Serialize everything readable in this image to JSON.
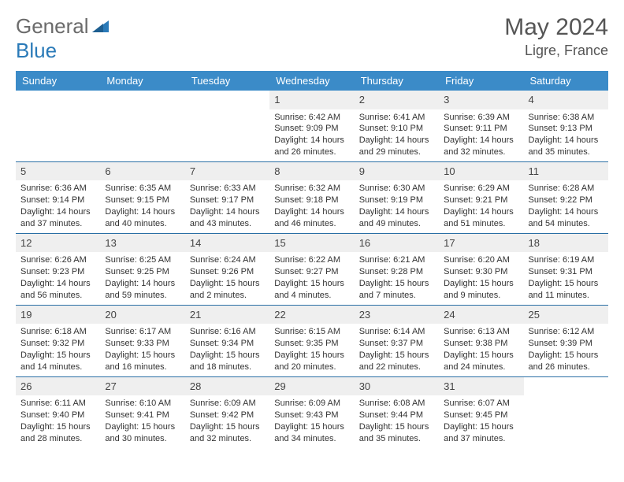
{
  "logo": {
    "part1": "General",
    "part2": "Blue"
  },
  "title": "May 2024",
  "location": "Ligre, France",
  "colors": {
    "header_bg": "#3b8bc8",
    "header_fg": "#ffffff",
    "daynum_bg": "#efefef",
    "row_border": "#2a6fa5",
    "logo_gray": "#6b6b6b",
    "logo_blue": "#2a7ab8"
  },
  "weekdays": [
    "Sunday",
    "Monday",
    "Tuesday",
    "Wednesday",
    "Thursday",
    "Friday",
    "Saturday"
  ],
  "weeks": [
    [
      {
        "n": "",
        "lines": [
          "",
          "",
          "",
          ""
        ]
      },
      {
        "n": "",
        "lines": [
          "",
          "",
          "",
          ""
        ]
      },
      {
        "n": "",
        "lines": [
          "",
          "",
          "",
          ""
        ]
      },
      {
        "n": "1",
        "lines": [
          "Sunrise: 6:42 AM",
          "Sunset: 9:09 PM",
          "Daylight: 14 hours",
          "and 26 minutes."
        ]
      },
      {
        "n": "2",
        "lines": [
          "Sunrise: 6:41 AM",
          "Sunset: 9:10 PM",
          "Daylight: 14 hours",
          "and 29 minutes."
        ]
      },
      {
        "n": "3",
        "lines": [
          "Sunrise: 6:39 AM",
          "Sunset: 9:11 PM",
          "Daylight: 14 hours",
          "and 32 minutes."
        ]
      },
      {
        "n": "4",
        "lines": [
          "Sunrise: 6:38 AM",
          "Sunset: 9:13 PM",
          "Daylight: 14 hours",
          "and 35 minutes."
        ]
      }
    ],
    [
      {
        "n": "5",
        "lines": [
          "Sunrise: 6:36 AM",
          "Sunset: 9:14 PM",
          "Daylight: 14 hours",
          "and 37 minutes."
        ]
      },
      {
        "n": "6",
        "lines": [
          "Sunrise: 6:35 AM",
          "Sunset: 9:15 PM",
          "Daylight: 14 hours",
          "and 40 minutes."
        ]
      },
      {
        "n": "7",
        "lines": [
          "Sunrise: 6:33 AM",
          "Sunset: 9:17 PM",
          "Daylight: 14 hours",
          "and 43 minutes."
        ]
      },
      {
        "n": "8",
        "lines": [
          "Sunrise: 6:32 AM",
          "Sunset: 9:18 PM",
          "Daylight: 14 hours",
          "and 46 minutes."
        ]
      },
      {
        "n": "9",
        "lines": [
          "Sunrise: 6:30 AM",
          "Sunset: 9:19 PM",
          "Daylight: 14 hours",
          "and 49 minutes."
        ]
      },
      {
        "n": "10",
        "lines": [
          "Sunrise: 6:29 AM",
          "Sunset: 9:21 PM",
          "Daylight: 14 hours",
          "and 51 minutes."
        ]
      },
      {
        "n": "11",
        "lines": [
          "Sunrise: 6:28 AM",
          "Sunset: 9:22 PM",
          "Daylight: 14 hours",
          "and 54 minutes."
        ]
      }
    ],
    [
      {
        "n": "12",
        "lines": [
          "Sunrise: 6:26 AM",
          "Sunset: 9:23 PM",
          "Daylight: 14 hours",
          "and 56 minutes."
        ]
      },
      {
        "n": "13",
        "lines": [
          "Sunrise: 6:25 AM",
          "Sunset: 9:25 PM",
          "Daylight: 14 hours",
          "and 59 minutes."
        ]
      },
      {
        "n": "14",
        "lines": [
          "Sunrise: 6:24 AM",
          "Sunset: 9:26 PM",
          "Daylight: 15 hours",
          "and 2 minutes."
        ]
      },
      {
        "n": "15",
        "lines": [
          "Sunrise: 6:22 AM",
          "Sunset: 9:27 PM",
          "Daylight: 15 hours",
          "and 4 minutes."
        ]
      },
      {
        "n": "16",
        "lines": [
          "Sunrise: 6:21 AM",
          "Sunset: 9:28 PM",
          "Daylight: 15 hours",
          "and 7 minutes."
        ]
      },
      {
        "n": "17",
        "lines": [
          "Sunrise: 6:20 AM",
          "Sunset: 9:30 PM",
          "Daylight: 15 hours",
          "and 9 minutes."
        ]
      },
      {
        "n": "18",
        "lines": [
          "Sunrise: 6:19 AM",
          "Sunset: 9:31 PM",
          "Daylight: 15 hours",
          "and 11 minutes."
        ]
      }
    ],
    [
      {
        "n": "19",
        "lines": [
          "Sunrise: 6:18 AM",
          "Sunset: 9:32 PM",
          "Daylight: 15 hours",
          "and 14 minutes."
        ]
      },
      {
        "n": "20",
        "lines": [
          "Sunrise: 6:17 AM",
          "Sunset: 9:33 PM",
          "Daylight: 15 hours",
          "and 16 minutes."
        ]
      },
      {
        "n": "21",
        "lines": [
          "Sunrise: 6:16 AM",
          "Sunset: 9:34 PM",
          "Daylight: 15 hours",
          "and 18 minutes."
        ]
      },
      {
        "n": "22",
        "lines": [
          "Sunrise: 6:15 AM",
          "Sunset: 9:35 PM",
          "Daylight: 15 hours",
          "and 20 minutes."
        ]
      },
      {
        "n": "23",
        "lines": [
          "Sunrise: 6:14 AM",
          "Sunset: 9:37 PM",
          "Daylight: 15 hours",
          "and 22 minutes."
        ]
      },
      {
        "n": "24",
        "lines": [
          "Sunrise: 6:13 AM",
          "Sunset: 9:38 PM",
          "Daylight: 15 hours",
          "and 24 minutes."
        ]
      },
      {
        "n": "25",
        "lines": [
          "Sunrise: 6:12 AM",
          "Sunset: 9:39 PM",
          "Daylight: 15 hours",
          "and 26 minutes."
        ]
      }
    ],
    [
      {
        "n": "26",
        "lines": [
          "Sunrise: 6:11 AM",
          "Sunset: 9:40 PM",
          "Daylight: 15 hours",
          "and 28 minutes."
        ]
      },
      {
        "n": "27",
        "lines": [
          "Sunrise: 6:10 AM",
          "Sunset: 9:41 PM",
          "Daylight: 15 hours",
          "and 30 minutes."
        ]
      },
      {
        "n": "28",
        "lines": [
          "Sunrise: 6:09 AM",
          "Sunset: 9:42 PM",
          "Daylight: 15 hours",
          "and 32 minutes."
        ]
      },
      {
        "n": "29",
        "lines": [
          "Sunrise: 6:09 AM",
          "Sunset: 9:43 PM",
          "Daylight: 15 hours",
          "and 34 minutes."
        ]
      },
      {
        "n": "30",
        "lines": [
          "Sunrise: 6:08 AM",
          "Sunset: 9:44 PM",
          "Daylight: 15 hours",
          "and 35 minutes."
        ]
      },
      {
        "n": "31",
        "lines": [
          "Sunrise: 6:07 AM",
          "Sunset: 9:45 PM",
          "Daylight: 15 hours",
          "and 37 minutes."
        ]
      },
      {
        "n": "",
        "lines": [
          "",
          "",
          "",
          ""
        ]
      }
    ]
  ]
}
